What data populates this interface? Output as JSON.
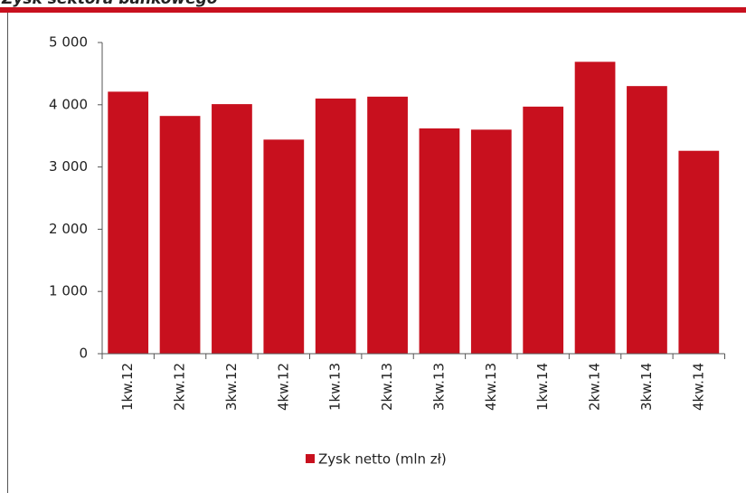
{
  "chart_data": {
    "type": "bar",
    "title": "Zysk sektora bankowego",
    "categories": [
      "1kw.12",
      "2kw.12",
      "3kw.12",
      "4kw.12",
      "1kw.13",
      "2kw.13",
      "3kw.13",
      "4kw.13",
      "1kw.14",
      "2kw.14",
      "3kw.14",
      "4kw.14"
    ],
    "series": [
      {
        "name": "Zysk netto (mln zł)",
        "color": "#c8101e",
        "values": [
          4210,
          3820,
          4010,
          3440,
          4100,
          4130,
          3620,
          3600,
          3970,
          4690,
          4300,
          3260
        ]
      }
    ],
    "ylim": [
      0,
      5000
    ],
    "yticks": [
      0,
      {
        "value": 1000,
        "label": "1 000"
      },
      {
        "value": 2000,
        "label": "2 000"
      },
      {
        "value": 3000,
        "label": "3 000"
      },
      {
        "value": 4000,
        "label": "4 000"
      },
      {
        "value": 5000,
        "label": "5 000"
      }
    ],
    "grid": false,
    "legend": "bottom"
  }
}
